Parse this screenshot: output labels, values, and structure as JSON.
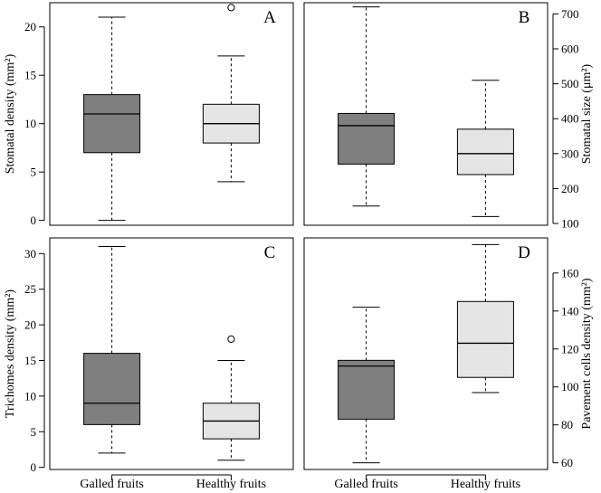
{
  "colors": {
    "galled_fill": "#7f7f7f",
    "healthy_fill": "#e5e5e5",
    "stroke": "#000000",
    "background": "#ffffff"
  },
  "categories": [
    "Galled fruits",
    "Healthy fruits"
  ],
  "chart_data": [
    {
      "type": "box",
      "panel_label": "A",
      "ylabel": "Stomatal density (mm²)",
      "y_axis_side": "left",
      "ylim": [
        -0.5,
        22.5
      ],
      "yticks": [
        0,
        5,
        10,
        15,
        20
      ],
      "categories": [
        "Galled fruits",
        "Healthy fruits"
      ],
      "boxes": [
        {
          "category": "Galled fruits",
          "min": 0,
          "q1": 7,
          "median": 11,
          "q3": 13,
          "max": 21,
          "outliers": []
        },
        {
          "category": "Healthy fruits",
          "min": 4,
          "q1": 8,
          "median": 10,
          "q3": 12,
          "max": 17,
          "outliers": [
            22
          ]
        }
      ]
    },
    {
      "type": "box",
      "panel_label": "B",
      "ylabel": "Stomatal size (μm²)",
      "y_axis_side": "right",
      "ylim": [
        95,
        732
      ],
      "yticks": [
        100,
        200,
        300,
        400,
        500,
        600,
        700
      ],
      "categories": [
        "Galled fruits",
        "Healthy fruits"
      ],
      "boxes": [
        {
          "category": "Galled fruits",
          "min": 150,
          "q1": 270,
          "median": 380,
          "q3": 415,
          "max": 720,
          "outliers": []
        },
        {
          "category": "Healthy fruits",
          "min": 120,
          "q1": 240,
          "median": 300,
          "q3": 370,
          "max": 510,
          "outliers": []
        }
      ]
    },
    {
      "type": "box",
      "panel_label": "C",
      "ylabel": "Trichomes density (mm²)",
      "y_axis_side": "left",
      "ylim": [
        -0.3,
        32.2
      ],
      "yticks": [
        0,
        5,
        10,
        15,
        20,
        25,
        30
      ],
      "categories": [
        "Galled fruits",
        "Healthy fruits"
      ],
      "boxes": [
        {
          "category": "Galled fruits",
          "min": 2,
          "q1": 6,
          "median": 9,
          "q3": 16,
          "max": 31,
          "outliers": []
        },
        {
          "category": "Healthy fruits",
          "min": 1,
          "q1": 4,
          "median": 6.5,
          "q3": 9,
          "max": 15,
          "outliers": [
            18
          ]
        }
      ]
    },
    {
      "type": "box",
      "panel_label": "D",
      "ylabel": "Pavement cells density (mm²)",
      "y_axis_side": "right",
      "ylim": [
        56.5,
        178.5
      ],
      "yticks": [
        60,
        80,
        100,
        120,
        140,
        160
      ],
      "categories": [
        "Galled fruits",
        "Healthy fruits"
      ],
      "boxes": [
        {
          "category": "Galled fruits",
          "min": 60,
          "q1": 83,
          "median": 111,
          "q3": 114,
          "max": 142,
          "outliers": []
        },
        {
          "category": "Healthy fruits",
          "min": 97,
          "q1": 105,
          "median": 123,
          "q3": 145,
          "max": 175,
          "outliers": []
        }
      ]
    }
  ]
}
